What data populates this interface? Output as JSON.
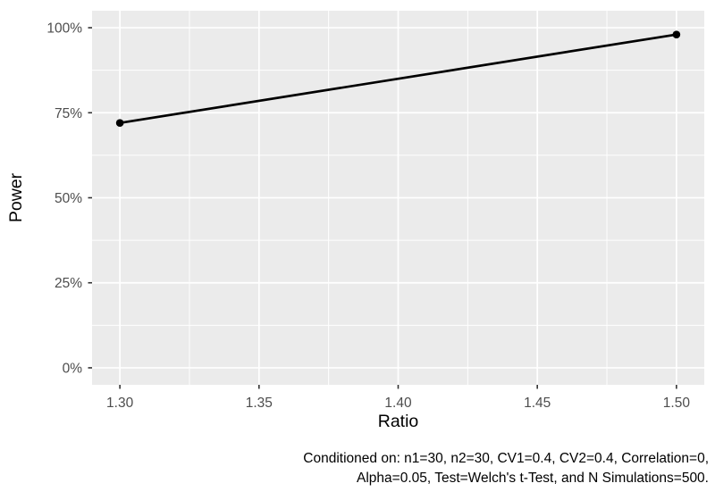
{
  "chart_data": {
    "type": "line",
    "title": "",
    "xlabel": "Ratio",
    "ylabel": "Power",
    "x": [
      1.3,
      1.5
    ],
    "series": [
      {
        "name": "Power",
        "values": [
          72,
          98
        ]
      }
    ],
    "units": "percent",
    "x_ticks": {
      "values": [
        1.3,
        1.35,
        1.4,
        1.45,
        1.5
      ],
      "labels": [
        "1.30",
        "1.35",
        "1.40",
        "1.45",
        "1.50"
      ]
    },
    "y_ticks": {
      "values": [
        0,
        25,
        50,
        75,
        100
      ],
      "labels": [
        "0%",
        "25%",
        "50%",
        "75%",
        "100%"
      ]
    },
    "xlim": [
      1.29,
      1.51
    ],
    "ylim": [
      -5,
      105
    ],
    "grid": true,
    "legend": "none",
    "caption_lines": [
      "Conditioned on: n1=30, n2=30, CV1=0.4, CV2=0.4, Correlation=0,",
      "Alpha=0.05, Test=Welch's t-Test, and N Simulations=500."
    ],
    "colors": {
      "panel_bg": "#EBEBEB",
      "grid": "#FFFFFF",
      "axis_text": "#4D4D4D",
      "tick_mark": "#333333",
      "line": "#000000",
      "point": "#000000",
      "title_text": "#000000",
      "figure_bg": "#FFFFFF"
    }
  }
}
